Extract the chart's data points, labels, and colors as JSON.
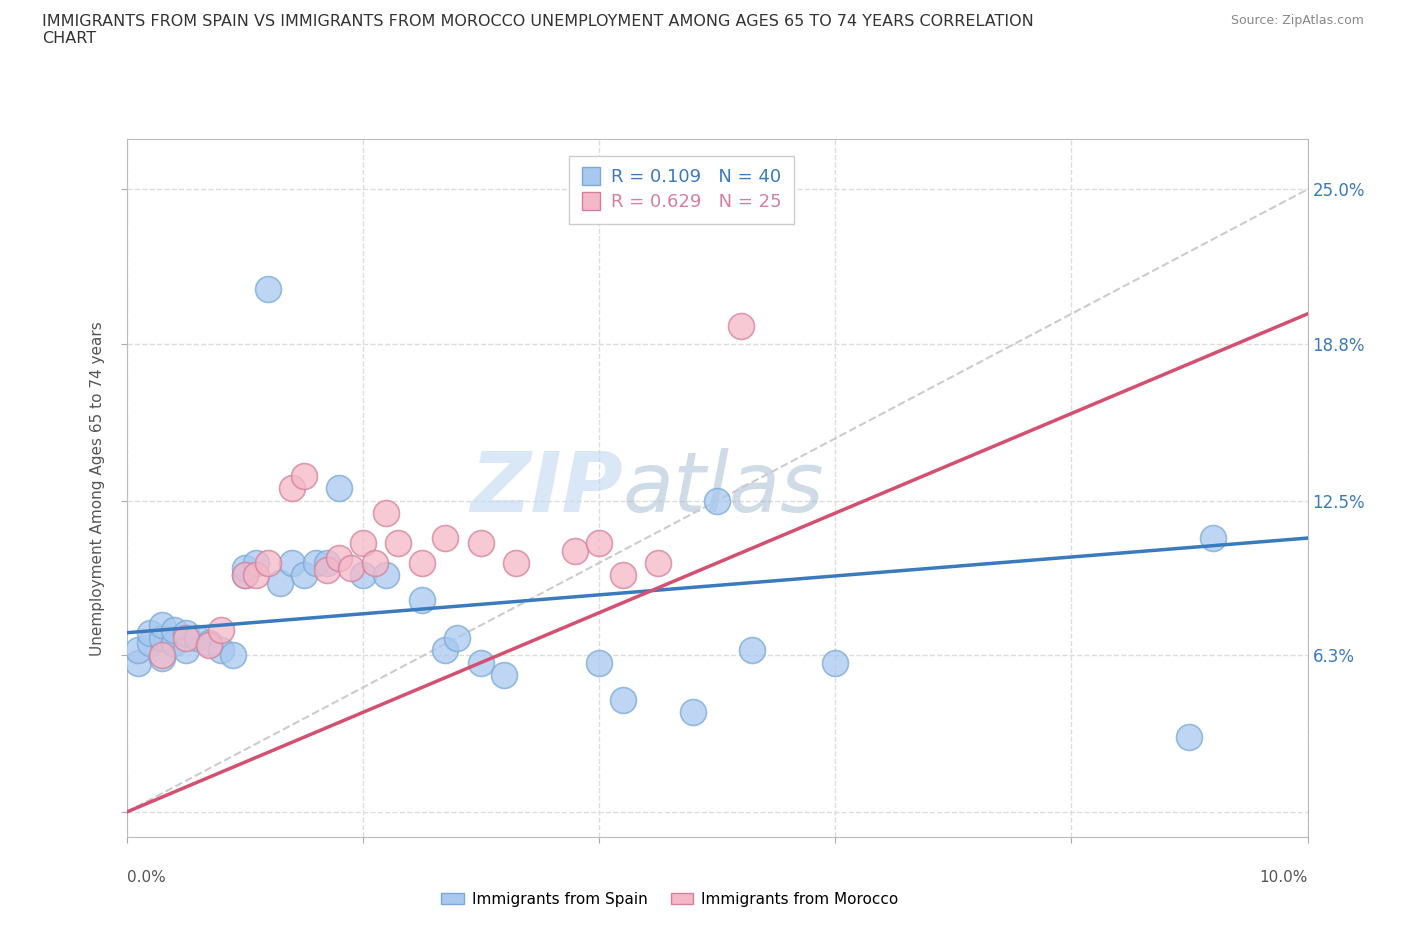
{
  "title": "IMMIGRANTS FROM SPAIN VS IMMIGRANTS FROM MOROCCO UNEMPLOYMENT AMONG AGES 65 TO 74 YEARS CORRELATION\nCHART",
  "source": "Source: ZipAtlas.com",
  "ylabel": "Unemployment Among Ages 65 to 74 years",
  "yticks": [
    0.0,
    0.063,
    0.125,
    0.188,
    0.25
  ],
  "ytick_labels_right": [
    "",
    "6.3%",
    "12.5%",
    "18.8%",
    "25.0%"
  ],
  "xlim": [
    0.0,
    0.1
  ],
  "ylim": [
    -0.01,
    0.27
  ],
  "spain_color": "#a8c8f0",
  "spain_edge_color": "#7aaad4",
  "morocco_color": "#f4b8c8",
  "morocco_edge_color": "#d4809a",
  "spain_R": 0.109,
  "spain_N": 40,
  "morocco_R": 0.629,
  "morocco_N": 25,
  "spain_label": "Immigrants from Spain",
  "morocco_label": "Immigrants from Morocco",
  "trend_line_color_spain": "#3a7abd",
  "trend_line_color_morocco": "#d45070",
  "trend_dashed_color": "#cccccc",
  "spain_scatter_x": [
    0.001,
    0.001,
    0.002,
    0.002,
    0.003,
    0.003,
    0.003,
    0.004,
    0.004,
    0.005,
    0.005,
    0.006,
    0.007,
    0.008,
    0.009,
    0.01,
    0.01,
    0.011,
    0.012,
    0.013,
    0.014,
    0.015,
    0.016,
    0.017,
    0.018,
    0.02,
    0.022,
    0.025,
    0.027,
    0.028,
    0.03,
    0.032,
    0.04,
    0.042,
    0.048,
    0.05,
    0.053,
    0.06,
    0.09,
    0.092
  ],
  "spain_scatter_y": [
    0.06,
    0.065,
    0.068,
    0.072,
    0.062,
    0.07,
    0.075,
    0.068,
    0.073,
    0.065,
    0.072,
    0.07,
    0.068,
    0.065,
    0.063,
    0.095,
    0.098,
    0.1,
    0.21,
    0.092,
    0.1,
    0.095,
    0.1,
    0.1,
    0.13,
    0.095,
    0.095,
    0.085,
    0.065,
    0.07,
    0.06,
    0.055,
    0.06,
    0.045,
    0.04,
    0.125,
    0.065,
    0.06,
    0.03,
    0.11
  ],
  "morocco_scatter_x": [
    0.003,
    0.005,
    0.007,
    0.008,
    0.01,
    0.011,
    0.012,
    0.014,
    0.015,
    0.017,
    0.018,
    0.019,
    0.02,
    0.021,
    0.022,
    0.023,
    0.025,
    0.027,
    0.03,
    0.033,
    0.038,
    0.04,
    0.042,
    0.045,
    0.052
  ],
  "morocco_scatter_y": [
    0.063,
    0.07,
    0.067,
    0.073,
    0.095,
    0.095,
    0.1,
    0.13,
    0.135,
    0.097,
    0.102,
    0.098,
    0.108,
    0.1,
    0.12,
    0.108,
    0.1,
    0.11,
    0.108,
    0.1,
    0.105,
    0.108,
    0.095,
    0.1,
    0.195
  ],
  "watermark_zip": "ZIP",
  "watermark_atlas": "atlas",
  "background_color": "#ffffff",
  "grid_color": "#dddddd",
  "grid_style": "--"
}
